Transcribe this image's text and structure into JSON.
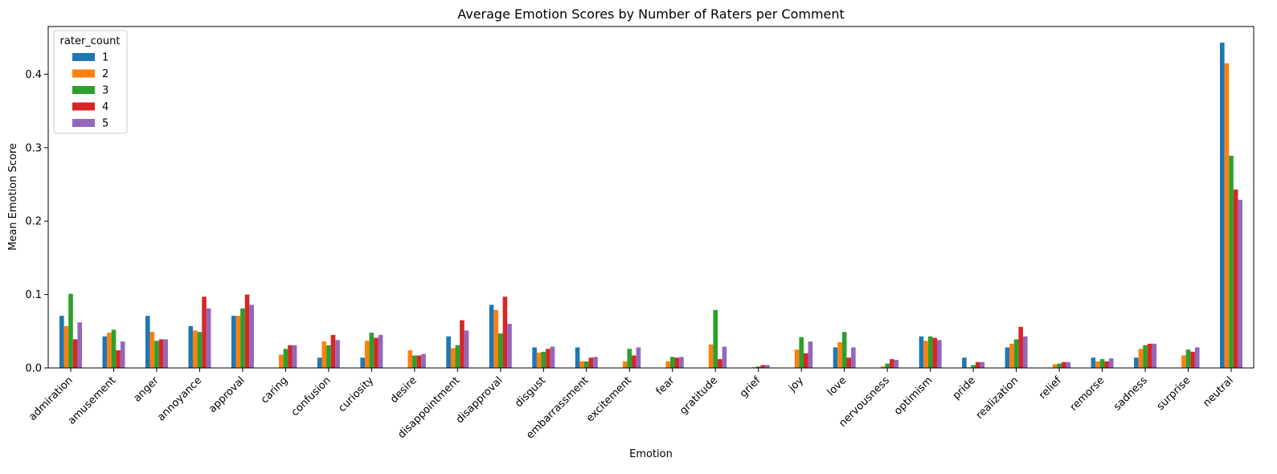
{
  "chart_data": {
    "type": "bar",
    "title": "Average Emotion Scores by Number of Raters per Comment",
    "xlabel": "Emotion",
    "ylabel": "Mean Emotion Score",
    "ylim": [
      0,
      0.465
    ],
    "yticks": [
      0.0,
      0.1,
      0.2,
      0.3,
      0.4
    ],
    "ytick_labels": [
      "0.0",
      "0.1",
      "0.2",
      "0.3",
      "0.4"
    ],
    "grid": false,
    "legend": {
      "title": "rater_count",
      "placement": "top-left"
    },
    "categories": [
      "admiration",
      "amusement",
      "anger",
      "annoyance",
      "approval",
      "caring",
      "confusion",
      "curiosity",
      "desire",
      "disappointment",
      "disapproval",
      "disgust",
      "embarrassment",
      "excitement",
      "fear",
      "gratitude",
      "grief",
      "joy",
      "love",
      "nervousness",
      "optimism",
      "pride",
      "realization",
      "relief",
      "remorse",
      "sadness",
      "surprise",
      "neutral"
    ],
    "series": [
      {
        "name": "1",
        "color": "#1f77b4",
        "values": [
          0.071,
          0.043,
          0.071,
          0.057,
          0.071,
          0.0,
          0.014,
          0.014,
          0.0,
          0.043,
          0.086,
          0.028,
          0.028,
          0.0,
          0.0,
          0.0,
          0.0,
          0.0,
          0.028,
          0.0,
          0.043,
          0.014,
          0.028,
          0.0,
          0.014,
          0.014,
          0.0,
          0.443
        ]
      },
      {
        "name": "2",
        "color": "#ff7f0e",
        "values": [
          0.057,
          0.048,
          0.049,
          0.051,
          0.071,
          0.018,
          0.036,
          0.037,
          0.024,
          0.027,
          0.079,
          0.021,
          0.009,
          0.009,
          0.009,
          0.032,
          0.001,
          0.025,
          0.035,
          0.002,
          0.037,
          0.001,
          0.033,
          0.005,
          0.009,
          0.026,
          0.017,
          0.415
        ]
      },
      {
        "name": "3",
        "color": "#2ca02c",
        "values": [
          0.101,
          0.052,
          0.037,
          0.049,
          0.081,
          0.026,
          0.031,
          0.048,
          0.017,
          0.031,
          0.047,
          0.022,
          0.009,
          0.026,
          0.015,
          0.079,
          0.002,
          0.042,
          0.049,
          0.006,
          0.043,
          0.004,
          0.039,
          0.006,
          0.012,
          0.031,
          0.025,
          0.289
        ]
      },
      {
        "name": "4",
        "color": "#d62728",
        "values": [
          0.039,
          0.024,
          0.039,
          0.097,
          0.1,
          0.031,
          0.045,
          0.041,
          0.017,
          0.065,
          0.097,
          0.026,
          0.014,
          0.017,
          0.014,
          0.012,
          0.004,
          0.02,
          0.014,
          0.012,
          0.041,
          0.008,
          0.056,
          0.008,
          0.009,
          0.033,
          0.022,
          0.243
        ]
      },
      {
        "name": "5",
        "color": "#9467bd",
        "values": [
          0.062,
          0.036,
          0.039,
          0.081,
          0.086,
          0.031,
          0.038,
          0.045,
          0.019,
          0.051,
          0.06,
          0.029,
          0.015,
          0.028,
          0.015,
          0.029,
          0.004,
          0.036,
          0.028,
          0.011,
          0.038,
          0.008,
          0.043,
          0.008,
          0.013,
          0.033,
          0.028,
          0.229
        ]
      }
    ]
  }
}
